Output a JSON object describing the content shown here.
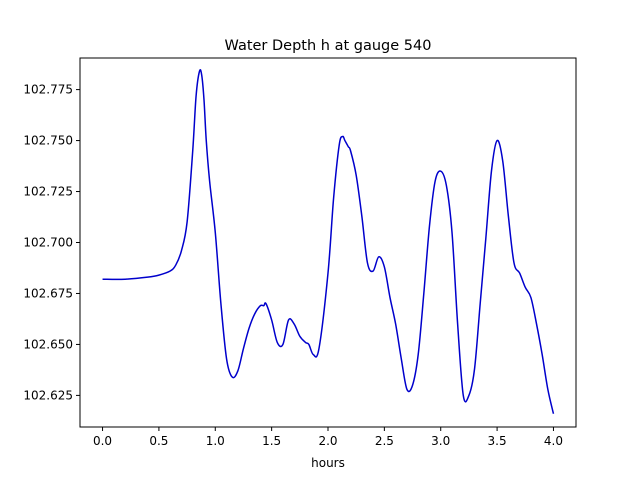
{
  "chart_data": {
    "type": "line",
    "title": "Water Depth h at gauge 540",
    "xlabel": "hours",
    "ylabel": "",
    "xlim": [
      -0.2,
      4.2
    ],
    "ylim": [
      102.6095,
      102.7905
    ],
    "xticks": [
      0.0,
      0.5,
      1.0,
      1.5,
      2.0,
      2.5,
      3.0,
      3.5,
      4.0
    ],
    "xtick_labels": [
      "0.0",
      "0.5",
      "1.0",
      "1.5",
      "2.0",
      "2.5",
      "3.0",
      "3.5",
      "4.0"
    ],
    "yticks": [
      102.625,
      102.65,
      102.675,
      102.7,
      102.725,
      102.75,
      102.775
    ],
    "ytick_labels": [
      "102.625",
      "102.650",
      "102.675",
      "102.700",
      "102.725",
      "102.750",
      "102.775"
    ],
    "grid": false,
    "series": [
      {
        "color": "#0000cc",
        "x": [
          0.0,
          0.2,
          0.4,
          0.5,
          0.6,
          0.65,
          0.7,
          0.75,
          0.8,
          0.83,
          0.86,
          0.88,
          0.9,
          0.92,
          0.95,
          1.0,
          1.05,
          1.1,
          1.15,
          1.2,
          1.25,
          1.3,
          1.35,
          1.4,
          1.43,
          1.45,
          1.5,
          1.55,
          1.6,
          1.65,
          1.7,
          1.75,
          1.8,
          1.83,
          1.87,
          1.92,
          2.0,
          2.05,
          2.1,
          2.13,
          2.15,
          2.18,
          2.2,
          2.25,
          2.3,
          2.35,
          2.4,
          2.45,
          2.5,
          2.55,
          2.6,
          2.65,
          2.7,
          2.75,
          2.8,
          2.85,
          2.9,
          2.95,
          3.0,
          3.05,
          3.1,
          3.15,
          3.2,
          3.25,
          3.3,
          3.35,
          3.4,
          3.45,
          3.5,
          3.55,
          3.6,
          3.65,
          3.7,
          3.75,
          3.8,
          3.85,
          3.9,
          3.95,
          4.0
        ],
        "y": [
          102.682,
          102.682,
          102.683,
          102.684,
          102.686,
          102.689,
          102.696,
          102.71,
          102.745,
          102.772,
          102.784,
          102.782,
          102.77,
          102.75,
          102.73,
          102.705,
          102.67,
          102.643,
          102.634,
          102.637,
          102.648,
          102.658,
          102.665,
          102.669,
          102.669,
          102.67,
          102.662,
          102.651,
          102.65,
          102.662,
          102.66,
          102.654,
          102.651,
          102.65,
          102.645,
          102.648,
          102.685,
          102.722,
          102.748,
          102.752,
          102.75,
          102.747,
          102.745,
          102.733,
          102.713,
          102.69,
          102.686,
          102.693,
          102.688,
          102.673,
          102.66,
          102.643,
          102.628,
          102.63,
          102.645,
          102.675,
          102.708,
          102.73,
          102.735,
          102.728,
          102.705,
          102.66,
          102.625,
          102.625,
          102.638,
          102.67,
          102.702,
          102.735,
          102.75,
          102.74,
          102.713,
          102.69,
          102.685,
          102.678,
          102.673,
          102.66,
          102.645,
          102.628,
          102.616
        ]
      }
    ]
  }
}
